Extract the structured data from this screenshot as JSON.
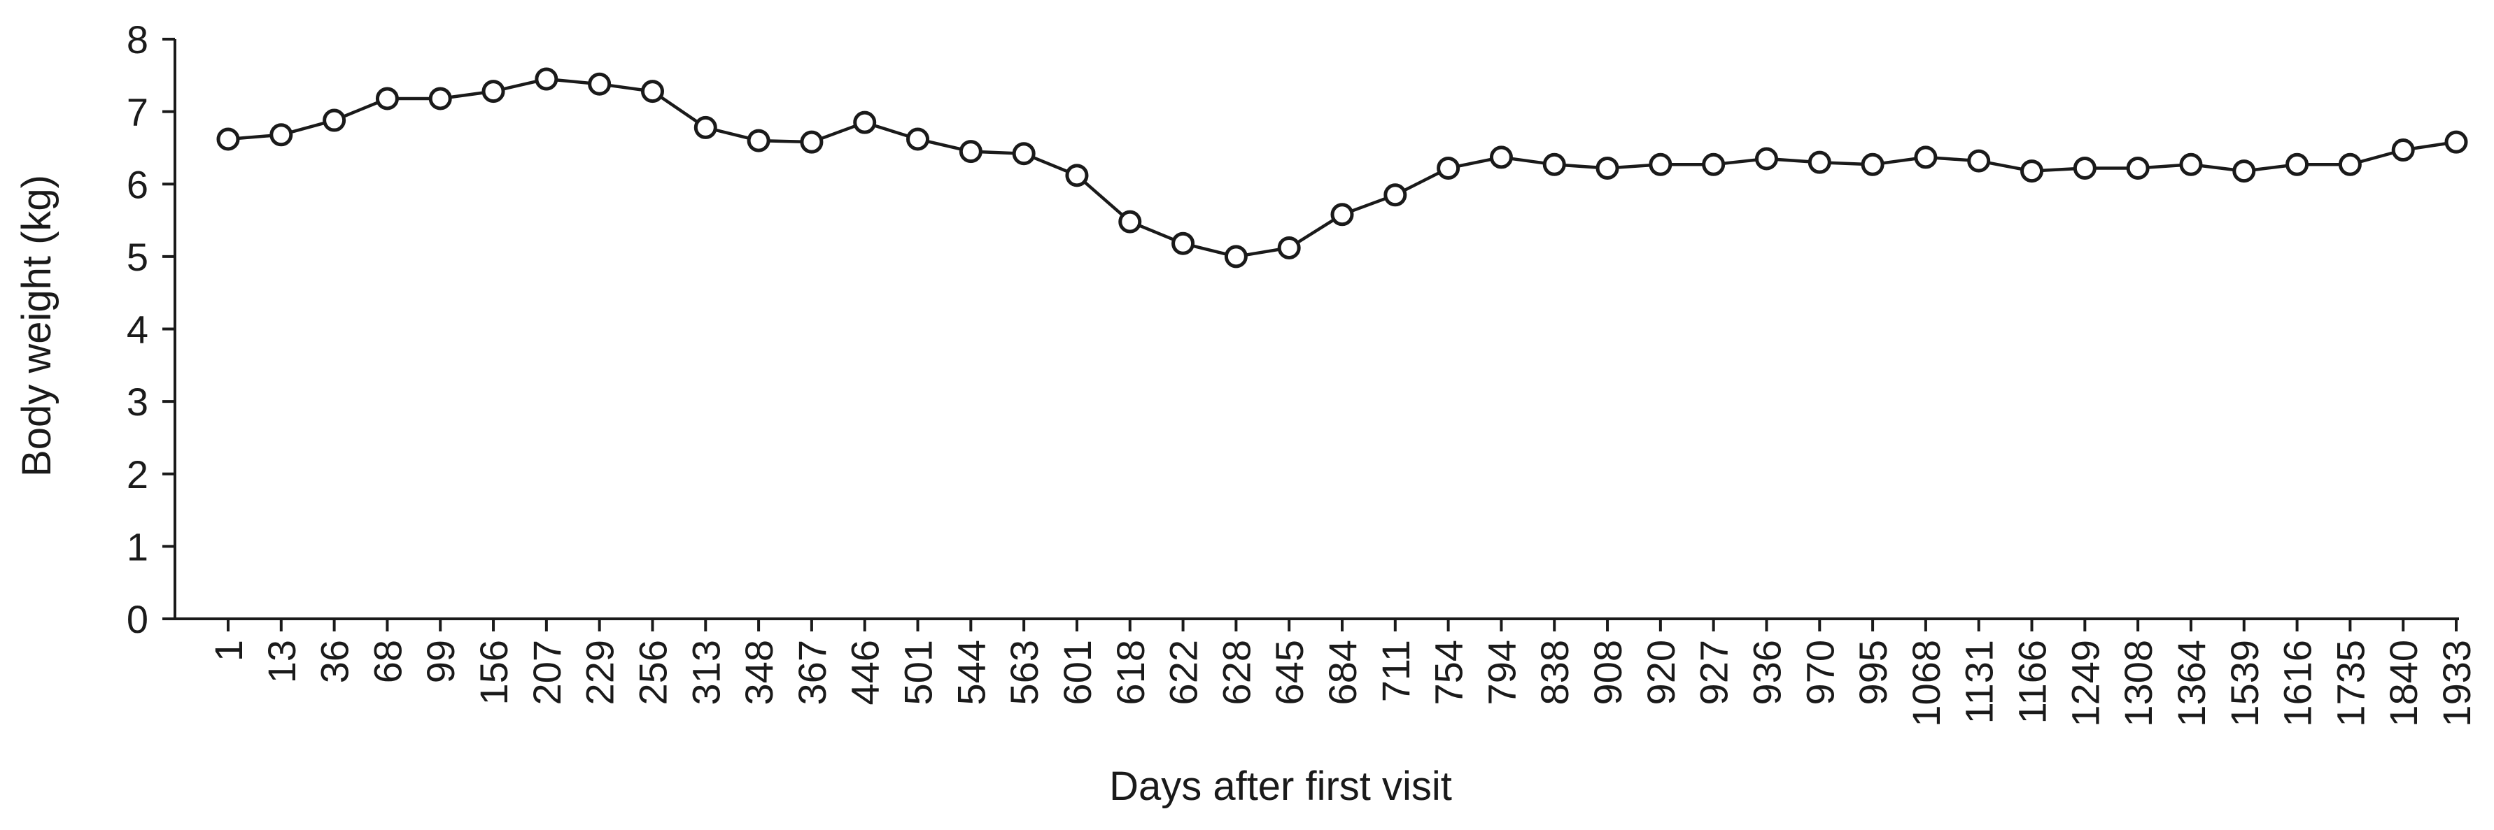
{
  "chart_data": {
    "type": "line",
    "xlabel": "Days after first visit",
    "ylabel": "Body weight (kg)",
    "ylim": [
      0,
      8
    ],
    "yticks": [
      0,
      1,
      2,
      3,
      4,
      5,
      6,
      7,
      8
    ],
    "grid": false,
    "legend": "none",
    "categories": [
      "1",
      "13",
      "36",
      "68",
      "99",
      "156",
      "207",
      "229",
      "256",
      "313",
      "348",
      "367",
      "446",
      "501",
      "544",
      "563",
      "601",
      "618",
      "622",
      "628",
      "645",
      "684",
      "711",
      "754",
      "794",
      "838",
      "908",
      "920",
      "927",
      "936",
      "970",
      "995",
      "1068",
      "1131",
      "1166",
      "1249",
      "1308",
      "1364",
      "1539",
      "1616",
      "1735",
      "1840",
      "1933"
    ],
    "series": [
      {
        "values": [
          6.62,
          6.68,
          6.88,
          7.18,
          7.18,
          7.28,
          7.45,
          7.38,
          7.28,
          6.78,
          6.6,
          6.58,
          6.85,
          6.62,
          6.45,
          6.42,
          6.12,
          5.48,
          5.18,
          5.0,
          5.12,
          5.58,
          5.85,
          6.22,
          6.37,
          6.27,
          6.22,
          6.27,
          6.27,
          6.35,
          6.3,
          6.27,
          6.37,
          6.32,
          6.18,
          6.22,
          6.22,
          6.27,
          6.18,
          6.27,
          6.27,
          6.47,
          6.58
        ]
      }
    ]
  }
}
